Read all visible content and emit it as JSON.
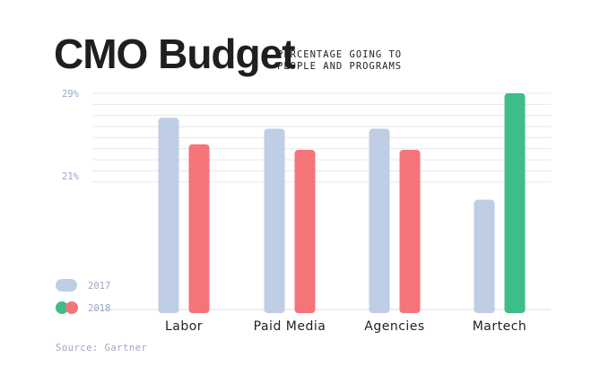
{
  "chart_data": {
    "type": "bar",
    "title": "CMO Budget",
    "subtitle_line1": "PERCENTAGE GOING TO",
    "subtitle_line2": "PEOPLE AND PROGRAMS",
    "categories": [
      "Labor",
      "Paid Media",
      "Agencies",
      "Martech"
    ],
    "series": [
      {
        "name": "2017",
        "values": [
          26.8,
          25.8,
          25.8,
          19.4
        ],
        "color": "#bfcde5"
      },
      {
        "name": "2018",
        "values": [
          24.4,
          23.9,
          23.9,
          29.0
        ],
        "color": "#f5747a",
        "highlight_color": "#3dbd88"
      }
    ],
    "highlight_index": 3,
    "y_ticks": [
      {
        "value": 29,
        "label": "29%"
      },
      {
        "value": 21,
        "label": "21%"
      }
    ],
    "grid_values": [
      29,
      28,
      27,
      26,
      25,
      24,
      23,
      22,
      21
    ],
    "ylim": [
      9.5,
      29
    ],
    "grid": true,
    "legend_position": "bottom-left",
    "source": "Source: Gartner"
  }
}
